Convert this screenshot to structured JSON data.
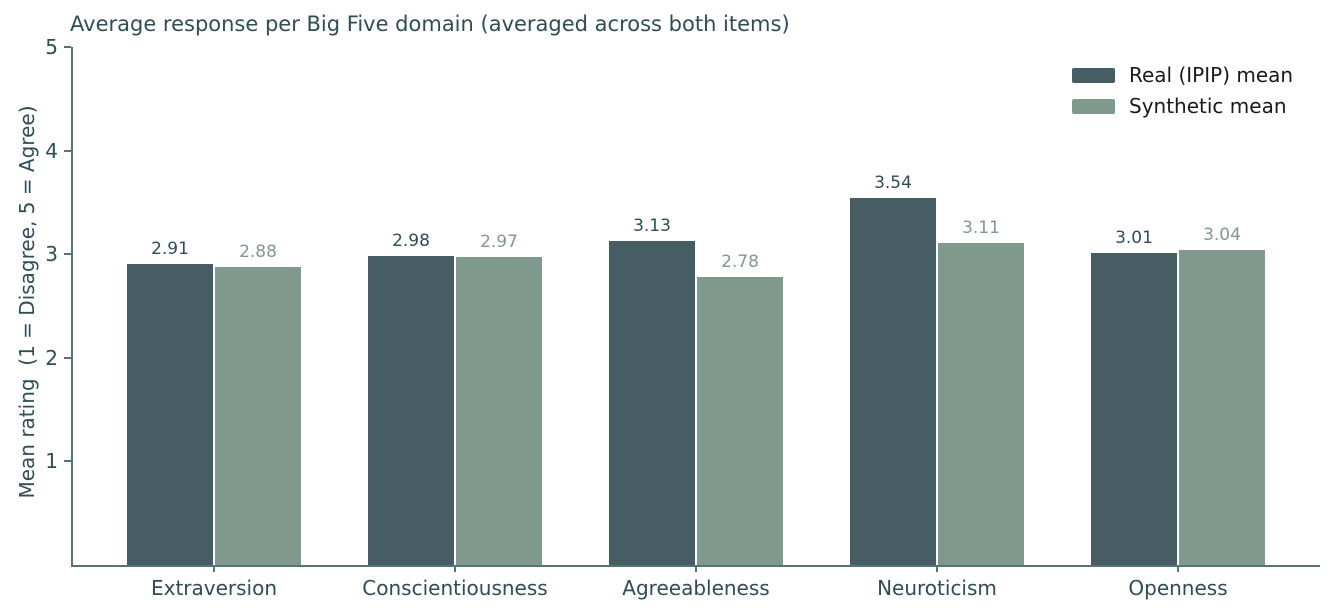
{
  "chart_data": {
    "type": "bar",
    "title": "Average response per Big Five domain (averaged across both items)",
    "ylabel": "Mean rating  (1 = Disagree, 5 = Agree)",
    "xlabel": "",
    "categories": [
      "Extraversion",
      "Conscientiousness",
      "Agreeableness",
      "Neuroticism",
      "Openness"
    ],
    "series": [
      {
        "name": "Real (IPIP) mean",
        "color": "#455d63",
        "label_color": "#2e4d55",
        "values": [
          2.91,
          2.98,
          3.13,
          3.54,
          3.01
        ]
      },
      {
        "name": "Synthetic mean",
        "color": "#7f9a8d",
        "label_color": "#7f9a8d",
        "values": [
          2.88,
          2.97,
          2.78,
          3.11,
          3.04
        ]
      }
    ],
    "ylim": [
      0,
      5
    ],
    "yticks": [
      1,
      2,
      3,
      4,
      5
    ],
    "grid": false,
    "legend_position": "upper right",
    "bar_value_labels": true
  },
  "colors": {
    "text": "#2e4d55",
    "axis": "#54747a",
    "legend_text": "#191919",
    "background": "#ffffff"
  }
}
